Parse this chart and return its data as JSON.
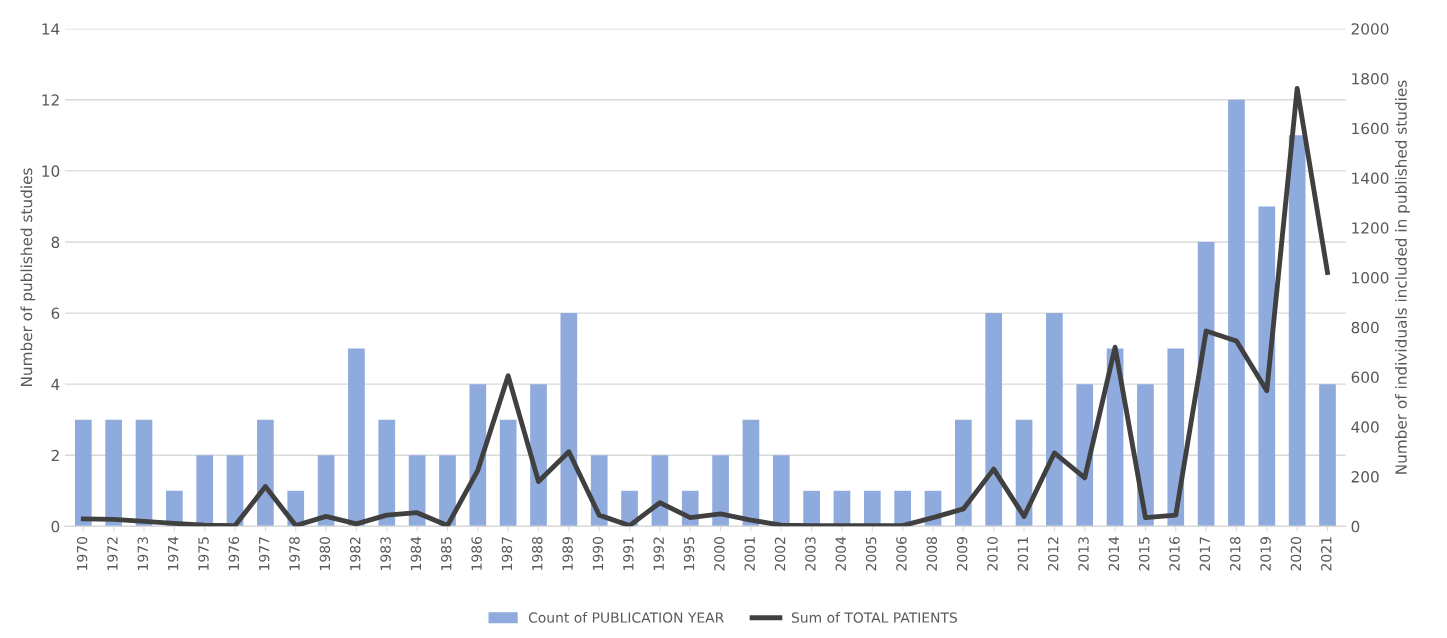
{
  "chart_data": {
    "type": "bar",
    "categories": [
      "1970",
      "1972",
      "1973",
      "1974",
      "1975",
      "1976",
      "1977",
      "1978",
      "1980",
      "1982",
      "1983",
      "1984",
      "1985",
      "1986",
      "1987",
      "1988",
      "1989",
      "1990",
      "1991",
      "1992",
      "1995",
      "2000",
      "2001",
      "2002",
      "2003",
      "2004",
      "2005",
      "2006",
      "2008",
      "2009",
      "2010",
      "2011",
      "2012",
      "2013",
      "2014",
      "2015",
      "2016",
      "2017",
      "2018",
      "2019",
      "2020",
      "2021"
    ],
    "series": [
      {
        "name": "Count of PUBLICATION YEAR",
        "color": "#8faadc",
        "values": [
          3,
          3,
          3,
          1,
          2,
          2,
          3,
          1,
          2,
          5,
          3,
          2,
          2,
          4,
          3,
          4,
          6,
          2,
          1,
          2,
          1,
          2,
          3,
          2,
          1,
          1,
          1,
          1,
          1,
          3,
          6,
          3,
          6,
          4,
          5,
          4,
          5,
          8,
          12,
          9,
          11,
          4
        ]
      },
      {
        "name": "Sum of TOTAL PATIENTS",
        "type": "line",
        "axis": "y2",
        "color": "#404040",
        "values": [
          30,
          28,
          20,
          12,
          5,
          3,
          160,
          3,
          40,
          10,
          45,
          55,
          3,
          225,
          605,
          180,
          300,
          45,
          3,
          95,
          35,
          50,
          25,
          5,
          3,
          3,
          3,
          3,
          35,
          70,
          230,
          40,
          295,
          195,
          720,
          35,
          45,
          785,
          745,
          545,
          1760,
          1020
        ]
      }
    ],
    "ylabel": "Number of published studies",
    "y2label": "Number of individuals included in published studies",
    "ylim": [
      0,
      14
    ],
    "yticks": [
      0,
      2,
      4,
      6,
      8,
      10,
      12,
      14
    ],
    "y2lim": [
      0,
      2000
    ],
    "y2ticks": [
      0,
      200,
      400,
      600,
      800,
      1000,
      1200,
      1400,
      1600,
      1800,
      2000
    ],
    "grid": "y",
    "legend": "bottom",
    "marker": "none",
    "line_style": "solid"
  }
}
